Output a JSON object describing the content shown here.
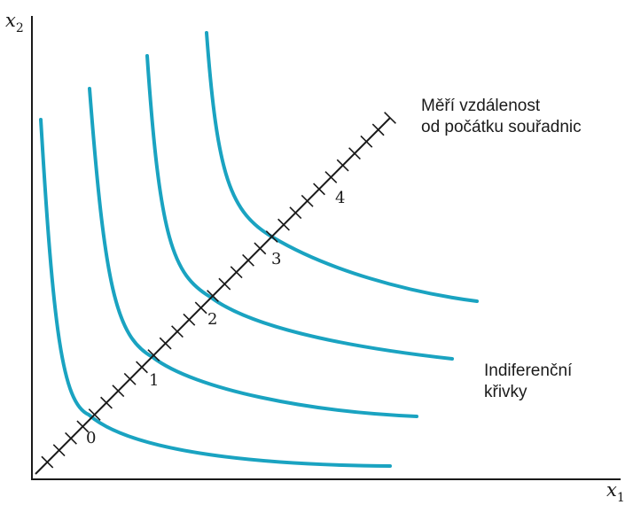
{
  "axes": {
    "x_label": "x",
    "x_sub": "1",
    "y_label": "x",
    "y_sub": "2"
  },
  "diagonal": {
    "label_lines": [
      "Měří vzdálenost",
      "od počátku souřadnic"
    ],
    "marks": [
      "0",
      "1",
      "2",
      "3",
      "4"
    ]
  },
  "curves": {
    "label_lines": [
      "Indiferenční",
      "křivky"
    ],
    "color": "#1aa3c1",
    "count": 4
  }
}
